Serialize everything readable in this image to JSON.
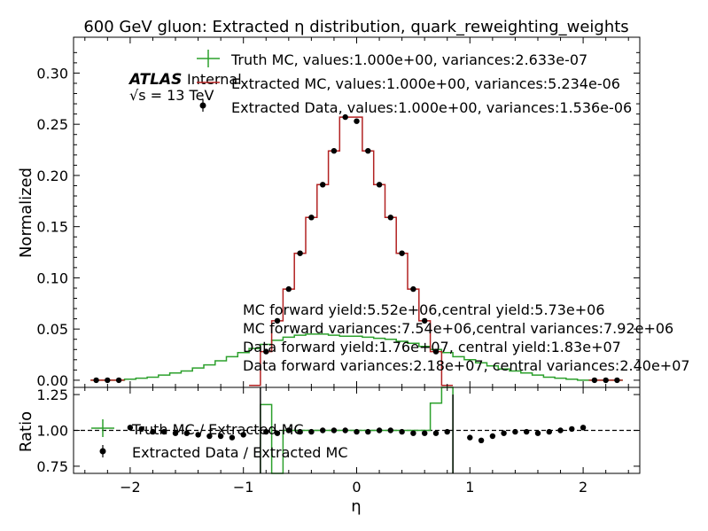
{
  "chart_data": [
    {
      "type": "step",
      "title": "600 GeV gluon: Extracted η distribution, quark_reweighting_weights",
      "xlabel": "",
      "ylabel": "Normalized",
      "xlim": [
        -2.5,
        2.5
      ],
      "ylim": [
        -0.007,
        0.335
      ],
      "yticks": [
        "0.00",
        "0.05",
        "0.10",
        "0.15",
        "0.20",
        "0.25",
        "0.30"
      ],
      "grid": false,
      "legend_position": "top-center",
      "atlas_label": "ATLAS",
      "atlas_status": "Internal",
      "energy_label": "√s = 13 TeV",
      "x": [
        -2.3,
        -2.2,
        -2.1,
        -2.0,
        -1.9,
        -1.8,
        -1.7,
        -1.6,
        -1.5,
        -1.4,
        -1.3,
        -1.2,
        -1.1,
        -1.0,
        -0.9,
        -0.8,
        -0.7,
        -0.6,
        -0.5,
        -0.4,
        -0.3,
        -0.2,
        -0.1,
        0.0,
        0.1,
        0.2,
        0.3,
        0.4,
        0.5,
        0.6,
        0.7,
        0.8,
        0.9,
        1.0,
        1.1,
        1.2,
        1.3,
        1.4,
        1.5,
        1.6,
        1.7,
        1.8,
        1.9,
        2.0,
        2.1,
        2.2,
        2.3
      ],
      "series": [
        {
          "name": "Truth MC, values:1.000e+00, variances:2.633e-07",
          "color": "#2ca02c",
          "values": [
            0.0,
            0.0,
            0.0,
            0.001,
            0.002,
            0.003,
            0.005,
            0.007,
            0.009,
            0.012,
            0.015,
            0.019,
            0.023,
            0.027,
            0.031,
            0.035,
            0.039,
            0.042,
            0.044,
            0.045,
            0.045,
            0.044,
            0.043,
            0.043,
            0.042,
            0.041,
            0.04,
            0.038,
            0.036,
            0.033,
            0.03,
            0.027,
            0.023,
            0.02,
            0.017,
            0.014,
            0.011,
            0.009,
            0.007,
            0.005,
            0.003,
            0.002,
            0.001,
            0.0,
            0.0,
            0.0,
            0.0
          ]
        },
        {
          "name": "Extracted MC, values:1.000e+00, variances:5.234e-06",
          "color": "#b22222",
          "values": [
            0.0,
            0.0,
            0.0,
            null,
            null,
            null,
            null,
            null,
            null,
            null,
            null,
            null,
            null,
            null,
            -0.005,
            0.028,
            0.058,
            0.089,
            0.124,
            0.159,
            0.191,
            0.224,
            0.257,
            0.257,
            0.224,
            0.191,
            0.159,
            0.124,
            0.089,
            0.058,
            0.028,
            -0.005,
            null,
            null,
            null,
            null,
            null,
            null,
            null,
            null,
            null,
            null,
            null,
            null,
            0.0,
            0.0,
            0.0
          ]
        },
        {
          "name": "Extracted Data, values:1.000e+00, variances:1.536e-06",
          "color": "#000000",
          "values": [
            0.0,
            0.0,
            0.0,
            null,
            null,
            null,
            null,
            null,
            null,
            null,
            null,
            null,
            null,
            null,
            null,
            0.028,
            0.058,
            0.089,
            0.124,
            0.159,
            0.191,
            0.224,
            0.257,
            0.253,
            0.224,
            0.191,
            0.159,
            0.124,
            0.089,
            0.058,
            0.028,
            null,
            null,
            null,
            null,
            null,
            null,
            null,
            null,
            null,
            null,
            null,
            null,
            null,
            0.0,
            0.0,
            0.0
          ]
        }
      ],
      "annotations": [
        "MC forward yield:5.52e+06,central yield:5.73e+06",
        "MC forward variances:7.54e+06,central variances:7.92e+06",
        "Data forward yield:1.76e+07, central yield:1.83e+07",
        "Data forward variances:2.18e+07, central variances:2.40e+07"
      ]
    },
    {
      "type": "ratio",
      "xlabel": "η",
      "ylabel": "Ratio",
      "xlim": [
        -2.5,
        2.5
      ],
      "ylim": [
        0.7,
        1.3
      ],
      "xticks": [
        "−2",
        "−1",
        "0",
        "1",
        "2"
      ],
      "yticks": [
        "0.75",
        "1.00",
        "1.25"
      ],
      "reference_line": 1.0,
      "legend_position": "top-left",
      "x": [
        -2.0,
        -1.9,
        -1.8,
        -1.7,
        -1.6,
        -1.5,
        -1.4,
        -1.3,
        -1.2,
        -1.1,
        -1.0,
        -0.9,
        -0.8,
        -0.7,
        -0.6,
        -0.5,
        -0.4,
        -0.3,
        -0.2,
        -0.1,
        0.0,
        0.1,
        0.2,
        0.3,
        0.4,
        0.5,
        0.6,
        0.7,
        0.8,
        0.9,
        1.0,
        1.1,
        1.2,
        1.3,
        1.4,
        1.5,
        1.6,
        1.7,
        1.8,
        1.9,
        2.0
      ],
      "series": [
        {
          "name": "Truth MC / Extracted MC",
          "color": "#2ca02c",
          "values": [
            null,
            null,
            null,
            null,
            null,
            null,
            null,
            null,
            null,
            null,
            null,
            null,
            1.18,
            0.7,
            1.0,
            1.0,
            1.0,
            1.0,
            1.0,
            1.0,
            1.0,
            1.0,
            1.0,
            1.0,
            1.0,
            1.0,
            1.0,
            1.19,
            1.3,
            null,
            null,
            null,
            null,
            null,
            null,
            null,
            null,
            null,
            null,
            null,
            null
          ]
        },
        {
          "name": "Extracted Data / Extracted MC",
          "color": "#000000",
          "values": [
            1.02,
            1.01,
            0.99,
            0.99,
            0.98,
            0.98,
            0.97,
            0.96,
            0.96,
            0.95,
            0.97,
            null,
            0.99,
            0.98,
            1.0,
            0.99,
            0.99,
            1.0,
            1.0,
            1.0,
            0.99,
            0.99,
            1.0,
            1.0,
            0.99,
            0.98,
            0.98,
            0.98,
            0.99,
            null,
            0.95,
            0.93,
            0.96,
            0.98,
            0.99,
            0.99,
            0.98,
            0.99,
            1.0,
            1.01,
            1.02
          ]
        }
      ]
    }
  ]
}
